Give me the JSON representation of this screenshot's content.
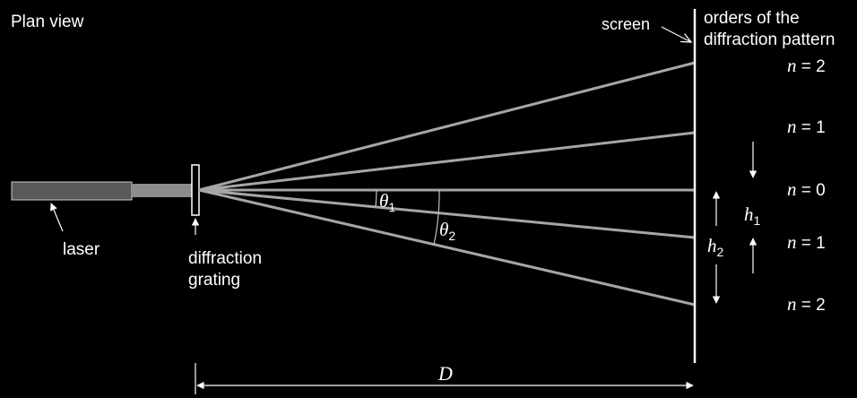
{
  "labels": {
    "plan_view": "Plan view",
    "screen": "screen",
    "orders_line1": "orders of the",
    "orders_line2": "diffraction pattern",
    "laser": "laser",
    "grating_line1": "diffraction",
    "grating_line2": "grating",
    "distance": "D"
  },
  "orders": [
    {
      "n_symbol": "n",
      "eq": " = 2"
    },
    {
      "n_symbol": "n",
      "eq": " = 1"
    },
    {
      "n_symbol": "n",
      "eq": " = 0"
    },
    {
      "n_symbol": "n",
      "eq": " = 1"
    },
    {
      "n_symbol": "n",
      "eq": " = 2"
    }
  ],
  "angles": {
    "theta1_symbol": "θ",
    "theta1_sub": "1",
    "theta2_symbol": "θ",
    "theta2_sub": "2"
  },
  "heights": {
    "h1_symbol": "h",
    "h1_sub": "1",
    "h2_symbol": "h",
    "h2_sub": "2"
  },
  "colors": {
    "background": "#000000",
    "ray": "#a6a6a6",
    "laser_body": "#595959",
    "foreground": "#ffffff"
  }
}
